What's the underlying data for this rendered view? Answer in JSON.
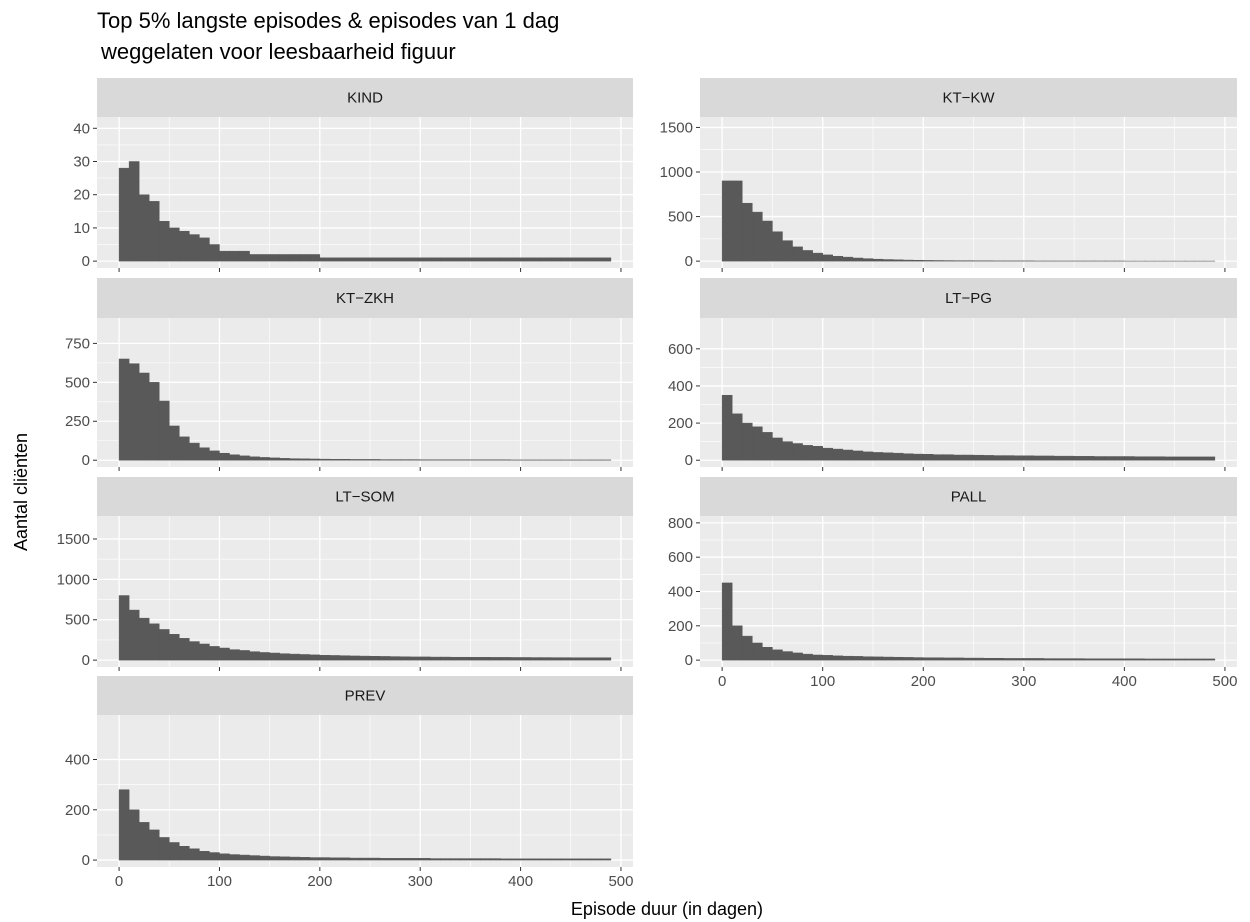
{
  "title": [
    "Top 5% langste episodes & episodes van 1 dag",
    "weggelaten voor leesbaarheid figuur"
  ],
  "x_label": "Episode duur (in dagen)",
  "y_label": "Aantal cliënten",
  "chart_data": [
    {
      "type": "histogram",
      "title": "KIND",
      "color": "#595959",
      "grid": true,
      "bins": [
        0,
        10,
        20,
        30,
        40,
        50,
        60,
        70,
        80,
        90,
        100,
        110,
        120,
        130,
        140,
        150,
        160,
        170,
        180,
        190,
        200,
        210,
        220,
        230,
        240,
        250,
        260,
        270,
        280,
        290,
        300,
        310,
        320,
        330,
        340,
        350,
        360,
        370,
        380,
        390,
        400,
        410,
        420,
        430,
        440,
        450,
        460,
        470,
        480,
        490
      ],
      "values": [
        28,
        30,
        20,
        18,
        12,
        10,
        9,
        8,
        7,
        5,
        3,
        3,
        3,
        2,
        2,
        2,
        2,
        2,
        2,
        2,
        1,
        1,
        1,
        1,
        1,
        1,
        1,
        1,
        1,
        1,
        1,
        1,
        1,
        1,
        1,
        1,
        1,
        1,
        1,
        1,
        1,
        1,
        1,
        1,
        1,
        1,
        1,
        1,
        1
      ],
      "xlim": [
        -22,
        512
      ],
      "xticks": [
        0,
        100,
        200,
        300,
        400,
        500
      ],
      "ylim": [
        -2.07,
        43.4
      ],
      "yticks": [
        0,
        10,
        20,
        30,
        40
      ]
    },
    {
      "type": "histogram",
      "title": "KT−KW",
      "color": "#595959",
      "grid": true,
      "bins": [
        0,
        10,
        20,
        30,
        40,
        50,
        60,
        70,
        80,
        90,
        100,
        110,
        120,
        130,
        140,
        150,
        160,
        170,
        180,
        190,
        200,
        210,
        220,
        230,
        240,
        250,
        260,
        270,
        280,
        290,
        300,
        310,
        320,
        330,
        340,
        350,
        360,
        370,
        380,
        390,
        400,
        410,
        420,
        430,
        440,
        450,
        460,
        470,
        480,
        490
      ],
      "values": [
        900,
        900,
        650,
        550,
        450,
        330,
        230,
        160,
        120,
        90,
        70,
        55,
        45,
        35,
        28,
        22,
        18,
        15,
        12,
        10,
        8,
        7,
        6,
        5,
        5,
        4,
        4,
        3,
        3,
        3,
        3,
        2,
        2,
        2,
        2,
        2,
        2,
        2,
        2,
        2,
        1,
        1,
        1,
        1,
        1,
        1,
        1,
        1,
        1
      ],
      "xlim": [
        -22,
        512
      ],
      "xticks": [
        0,
        100,
        200,
        300,
        400,
        500
      ],
      "ylim": [
        -77,
        1617
      ],
      "yticks": [
        0,
        500,
        1000,
        1500
      ]
    },
    {
      "type": "histogram",
      "title": "KT−ZKH",
      "color": "#595959",
      "grid": true,
      "bins": [
        0,
        10,
        20,
        30,
        40,
        50,
        60,
        70,
        80,
        90,
        100,
        110,
        120,
        130,
        140,
        150,
        160,
        170,
        180,
        190,
        200,
        210,
        220,
        230,
        240,
        250,
        260,
        270,
        280,
        290,
        300,
        310,
        320,
        330,
        340,
        350,
        360,
        370,
        380,
        390,
        400,
        410,
        420,
        430,
        440,
        450,
        460,
        470,
        480,
        490
      ],
      "values": [
        650,
        620,
        560,
        500,
        380,
        220,
        150,
        110,
        80,
        60,
        45,
        35,
        28,
        22,
        18,
        15,
        12,
        10,
        9,
        8,
        7,
        6,
        6,
        5,
        5,
        5,
        4,
        4,
        4,
        4,
        3,
        3,
        3,
        3,
        3,
        3,
        3,
        3,
        3,
        2,
        2,
        2,
        2,
        2,
        2,
        2,
        2,
        2,
        2
      ],
      "xlim": [
        -22,
        512
      ],
      "xticks": [
        0,
        100,
        200,
        300,
        400,
        500
      ],
      "ylim": [
        -43.5,
        913
      ],
      "yticks": [
        0,
        250,
        500,
        750
      ]
    },
    {
      "type": "histogram",
      "title": "LT−PG",
      "color": "#595959",
      "grid": true,
      "bins": [
        0,
        10,
        20,
        30,
        40,
        50,
        60,
        70,
        80,
        90,
        100,
        110,
        120,
        130,
        140,
        150,
        160,
        170,
        180,
        190,
        200,
        210,
        220,
        230,
        240,
        250,
        260,
        270,
        280,
        290,
        300,
        310,
        320,
        330,
        340,
        350,
        360,
        370,
        380,
        390,
        400,
        410,
        420,
        430,
        440,
        450,
        460,
        470,
        480,
        490
      ],
      "values": [
        350,
        250,
        200,
        180,
        150,
        120,
        100,
        90,
        80,
        75,
        65,
        60,
        55,
        50,
        45,
        42,
        40,
        38,
        35,
        33,
        32,
        30,
        30,
        28,
        28,
        27,
        26,
        25,
        25,
        24,
        24,
        23,
        23,
        22,
        22,
        21,
        21,
        20,
        20,
        20,
        20,
        19,
        19,
        19,
        18,
        18,
        18,
        18,
        18
      ],
      "xlim": [
        -22,
        512
      ],
      "xticks": [
        0,
        100,
        200,
        300,
        400,
        500
      ],
      "ylim": [
        -36.5,
        766
      ],
      "yticks": [
        0,
        200,
        400,
        600
      ]
    },
    {
      "type": "histogram",
      "title": "LT−SOM",
      "color": "#595959",
      "grid": true,
      "bins": [
        0,
        10,
        20,
        30,
        40,
        50,
        60,
        70,
        80,
        90,
        100,
        110,
        120,
        130,
        140,
        150,
        160,
        170,
        180,
        190,
        200,
        210,
        220,
        230,
        240,
        250,
        260,
        270,
        280,
        290,
        300,
        310,
        320,
        330,
        340,
        350,
        360,
        370,
        380,
        390,
        400,
        410,
        420,
        430,
        440,
        450,
        460,
        470,
        480,
        490
      ],
      "values": [
        800,
        620,
        520,
        450,
        380,
        320,
        270,
        230,
        200,
        170,
        150,
        130,
        120,
        105,
        95,
        88,
        80,
        75,
        70,
        65,
        60,
        58,
        55,
        52,
        50,
        48,
        46,
        44,
        42,
        40,
        40,
        38,
        38,
        36,
        36,
        35,
        35,
        34,
        34,
        33,
        33,
        32,
        32,
        31,
        31,
        30,
        30,
        30,
        30
      ],
      "xlim": [
        -22,
        512
      ],
      "xticks": [
        0,
        100,
        200,
        300,
        400,
        500
      ],
      "ylim": [
        -85,
        1785
      ],
      "yticks": [
        0,
        500,
        1000,
        1500
      ]
    },
    {
      "type": "histogram",
      "title": "PALL",
      "color": "#595959",
      "grid": true,
      "bins": [
        0,
        10,
        20,
        30,
        40,
        50,
        60,
        70,
        80,
        90,
        100,
        110,
        120,
        130,
        140,
        150,
        160,
        170,
        180,
        190,
        200,
        210,
        220,
        230,
        240,
        250,
        260,
        270,
        280,
        290,
        300,
        310,
        320,
        330,
        340,
        350,
        360,
        370,
        380,
        390,
        400,
        410,
        420,
        430,
        440,
        450,
        460,
        470,
        480,
        490
      ],
      "values": [
        450,
        200,
        140,
        100,
        75,
        60,
        50,
        42,
        35,
        30,
        28,
        25,
        23,
        22,
        20,
        19,
        18,
        17,
        16,
        15,
        14,
        14,
        13,
        13,
        12,
        12,
        11,
        11,
        10,
        10,
        10,
        10,
        9,
        9,
        9,
        9,
        8,
        8,
        8,
        8,
        8,
        8,
        7,
        7,
        7,
        7,
        7,
        7,
        7
      ],
      "xlim": [
        -22,
        512
      ],
      "xticks": [
        0,
        100,
        200,
        300,
        400,
        500
      ],
      "ylim": [
        -40,
        840
      ],
      "yticks": [
        0,
        200,
        400,
        600,
        800
      ]
    },
    {
      "type": "histogram",
      "title": "PREV",
      "color": "#595959",
      "grid": true,
      "bins": [
        0,
        10,
        20,
        30,
        40,
        50,
        60,
        70,
        80,
        90,
        100,
        110,
        120,
        130,
        140,
        150,
        160,
        170,
        180,
        190,
        200,
        210,
        220,
        230,
        240,
        250,
        260,
        270,
        280,
        290,
        300,
        310,
        320,
        330,
        340,
        350,
        360,
        370,
        380,
        390,
        400,
        410,
        420,
        430,
        440,
        450,
        460,
        470,
        480,
        490
      ],
      "values": [
        280,
        200,
        150,
        120,
        90,
        70,
        55,
        45,
        35,
        30,
        25,
        22,
        20,
        18,
        16,
        14,
        13,
        12,
        11,
        10,
        10,
        9,
        9,
        8,
        8,
        8,
        7,
        7,
        7,
        7,
        7,
        6,
        6,
        6,
        6,
        6,
        6,
        6,
        5,
        5,
        5,
        5,
        5,
        5,
        5,
        5,
        5,
        5,
        5
      ],
      "xlim": [
        -22,
        512
      ],
      "xticks": [
        0,
        100,
        200,
        300,
        400,
        500
      ],
      "ylim": [
        -27.5,
        577
      ],
      "yticks": [
        0,
        200,
        400
      ]
    }
  ]
}
